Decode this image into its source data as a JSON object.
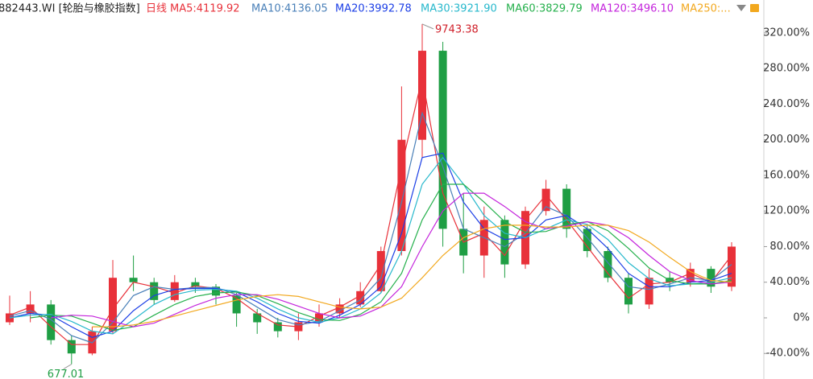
{
  "chart_data": {
    "type": "candlestick",
    "title": "882443.WI [轮胎与橡胶指数]",
    "period": "日线",
    "max_label": "9743.38",
    "min_label": "677.01",
    "up_color": "#e8313a",
    "down_color": "#1f9e44",
    "open": [
      -5,
      5,
      15,
      -25,
      -40,
      -15,
      45,
      40,
      20,
      40,
      35,
      25,
      5,
      -5,
      -15,
      -5,
      5,
      15,
      30,
      75,
      200,
      300,
      100,
      70,
      110,
      60,
      120,
      145,
      100,
      75,
      45,
      15,
      45,
      40,
      55,
      35
    ],
    "high": [
      25,
      30,
      20,
      -20,
      -10,
      65,
      70,
      45,
      48,
      45,
      38,
      28,
      10,
      0,
      5,
      15,
      22,
      40,
      80,
      260,
      330,
      310,
      140,
      125,
      115,
      125,
      155,
      150,
      105,
      80,
      50,
      55,
      52,
      62,
      58,
      85
    ],
    "low": [
      -8,
      -5,
      -30,
      -52,
      -42,
      -18,
      30,
      15,
      18,
      28,
      15,
      -10,
      -18,
      -22,
      -25,
      -10,
      0,
      12,
      28,
      70,
      180,
      80,
      50,
      45,
      45,
      55,
      115,
      90,
      68,
      40,
      5,
      10,
      30,
      35,
      28,
      30
    ],
    "close": [
      5,
      15,
      -25,
      -40,
      -15,
      45,
      40,
      20,
      40,
      35,
      25,
      5,
      -5,
      -15,
      -5,
      5,
      15,
      30,
      75,
      200,
      300,
      100,
      70,
      110,
      60,
      120,
      145,
      100,
      75,
      45,
      15,
      45,
      40,
      55,
      35,
      80
    ],
    "series": [
      {
        "name": "MA5:4119.92",
        "color": "#e8313a",
        "values": [
          3,
          12,
          -10,
          -30,
          -30,
          10,
          40,
          35,
          28,
          36,
          33,
          22,
          5,
          -8,
          -10,
          2,
          12,
          25,
          60,
          170,
          270,
          140,
          85,
          95,
          70,
          110,
          138,
          110,
          80,
          50,
          22,
          38,
          40,
          50,
          40,
          70
        ]
      },
      {
        "name": "MA10:4136.05",
        "color": "#4a80b8",
        "values": [
          2,
          8,
          -2,
          -20,
          -28,
          -5,
          25,
          35,
          32,
          34,
          34,
          26,
          12,
          -2,
          -8,
          -4,
          8,
          20,
          45,
          130,
          230,
          170,
          100,
          90,
          80,
          95,
          125,
          115,
          90,
          62,
          35,
          32,
          38,
          45,
          42,
          60
        ]
      },
      {
        "name": "MA20:3992.78",
        "color": "#1c3fe6",
        "values": [
          0,
          5,
          3,
          -10,
          -22,
          -15,
          8,
          25,
          32,
          33,
          33,
          29,
          18,
          5,
          -4,
          -6,
          3,
          15,
          35,
          95,
          180,
          185,
          130,
          100,
          88,
          90,
          110,
          115,
          100,
          78,
          50,
          35,
          35,
          40,
          42,
          50
        ]
      },
      {
        "name": "MA30:3921.90",
        "color": "#27b8cc",
        "values": [
          0,
          3,
          4,
          -4,
          -15,
          -18,
          -2,
          15,
          26,
          31,
          32,
          30,
          22,
          10,
          0,
          -5,
          0,
          10,
          28,
          75,
          150,
          180,
          150,
          115,
          95,
          90,
          100,
          110,
          105,
          88,
          62,
          44,
          36,
          38,
          40,
          45
        ]
      },
      {
        "name": "MA60:3829.79",
        "color": "#25b04c",
        "values": [
          null,
          0,
          3,
          2,
          -6,
          -14,
          -10,
          3,
          15,
          24,
          28,
          29,
          25,
          16,
          6,
          -2,
          -3,
          4,
          18,
          50,
          110,
          150,
          150,
          130,
          108,
          96,
          97,
          105,
          108,
          98,
          78,
          56,
          42,
          38,
          38,
          42
        ]
      },
      {
        "name": "MA120:3496.10",
        "color": "#c424dc",
        "values": [
          null,
          null,
          0,
          3,
          2,
          -4,
          -10,
          -6,
          4,
          14,
          22,
          26,
          26,
          21,
          13,
          5,
          0,
          2,
          12,
          35,
          80,
          120,
          140,
          140,
          125,
          108,
          100,
          103,
          108,
          104,
          90,
          70,
          52,
          42,
          38,
          40
        ]
      },
      {
        "name": "MA250:...",
        "color": "#f2a81e",
        "values": [
          null,
          null,
          null,
          null,
          -10,
          -10,
          -8,
          -4,
          2,
          8,
          14,
          20,
          24,
          26,
          24,
          18,
          12,
          10,
          12,
          22,
          45,
          70,
          90,
          100,
          104,
          104,
          102,
          102,
          104,
          104,
          98,
          85,
          68,
          52,
          42,
          40
        ]
      }
    ],
    "ylim": [
      -68.7,
      357
    ],
    "yticks": [
      {
        "value": 320,
        "label": "320.00%"
      },
      {
        "value": 280,
        "label": "280.00%"
      },
      {
        "value": 240,
        "label": "240.00%"
      },
      {
        "value": 200,
        "label": "200.00%"
      },
      {
        "value": 160,
        "label": "160.00%"
      },
      {
        "value": 120,
        "label": "120.00%"
      },
      {
        "value": 80,
        "label": "80.00%"
      },
      {
        "value": 40,
        "label": "40.00%"
      },
      {
        "value": 0,
        "label": "0%"
      },
      {
        "value": -40,
        "label": "-40.00%"
      }
    ]
  }
}
